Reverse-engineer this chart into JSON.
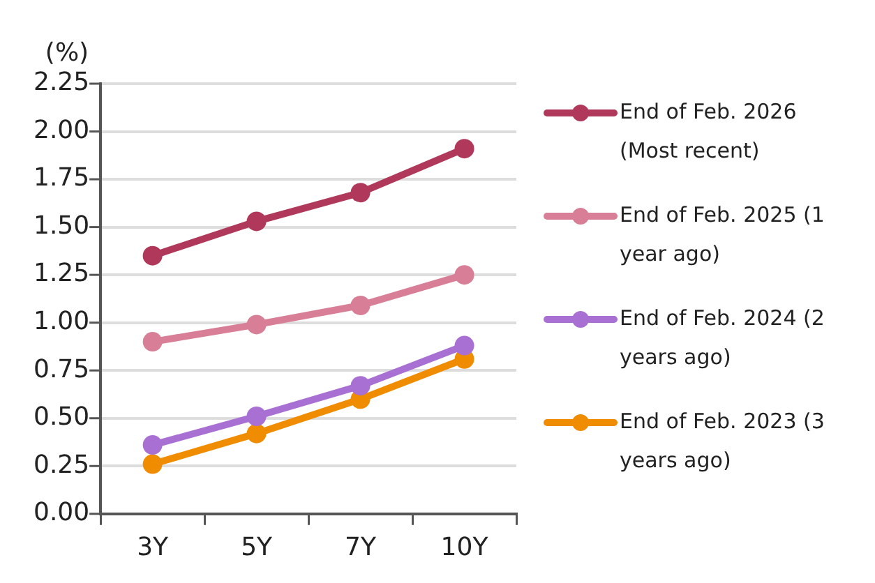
{
  "chart_data": {
    "type": "line",
    "ylabel": "(%)",
    "categories": [
      "3Y",
      "5Y",
      "7Y",
      "10Y"
    ],
    "series": [
      {
        "name": "End of Feb. 2026 (Most recent)",
        "color": "#b0385a",
        "values": [
          1.35,
          1.53,
          1.68,
          1.91
        ]
      },
      {
        "name": "End of Feb. 2025 (1 year ago)",
        "color": "#d87f97",
        "values": [
          0.9,
          0.99,
          1.09,
          1.25
        ]
      },
      {
        "name": "End of Feb. 2024 (2 years ago)",
        "color": "#a970d4",
        "values": [
          0.36,
          0.51,
          0.67,
          0.88
        ]
      },
      {
        "name": "End of Feb. 2023 (3 years ago)",
        "color": "#f08c00",
        "values": [
          0.26,
          0.42,
          0.6,
          0.81
        ]
      }
    ],
    "ylim": [
      0,
      2.25
    ],
    "yticks": [
      {
        "value": 0,
        "label": "0.00"
      },
      {
        "value": 0.25,
        "label": "0.25"
      },
      {
        "value": 0.5,
        "label": "0.50"
      },
      {
        "value": 0.75,
        "label": "0.75"
      },
      {
        "value": 1,
        "label": "1.00"
      },
      {
        "value": 1.25,
        "label": "1.25"
      },
      {
        "value": 1.5,
        "label": "1.50"
      },
      {
        "value": 1.75,
        "label": "1.75"
      },
      {
        "value": 2,
        "label": "2.00"
      },
      {
        "value": 2.25,
        "label": "2.25"
      }
    ],
    "grid": "y",
    "legend": "right",
    "marker": "circle",
    "line_style": "solid"
  }
}
